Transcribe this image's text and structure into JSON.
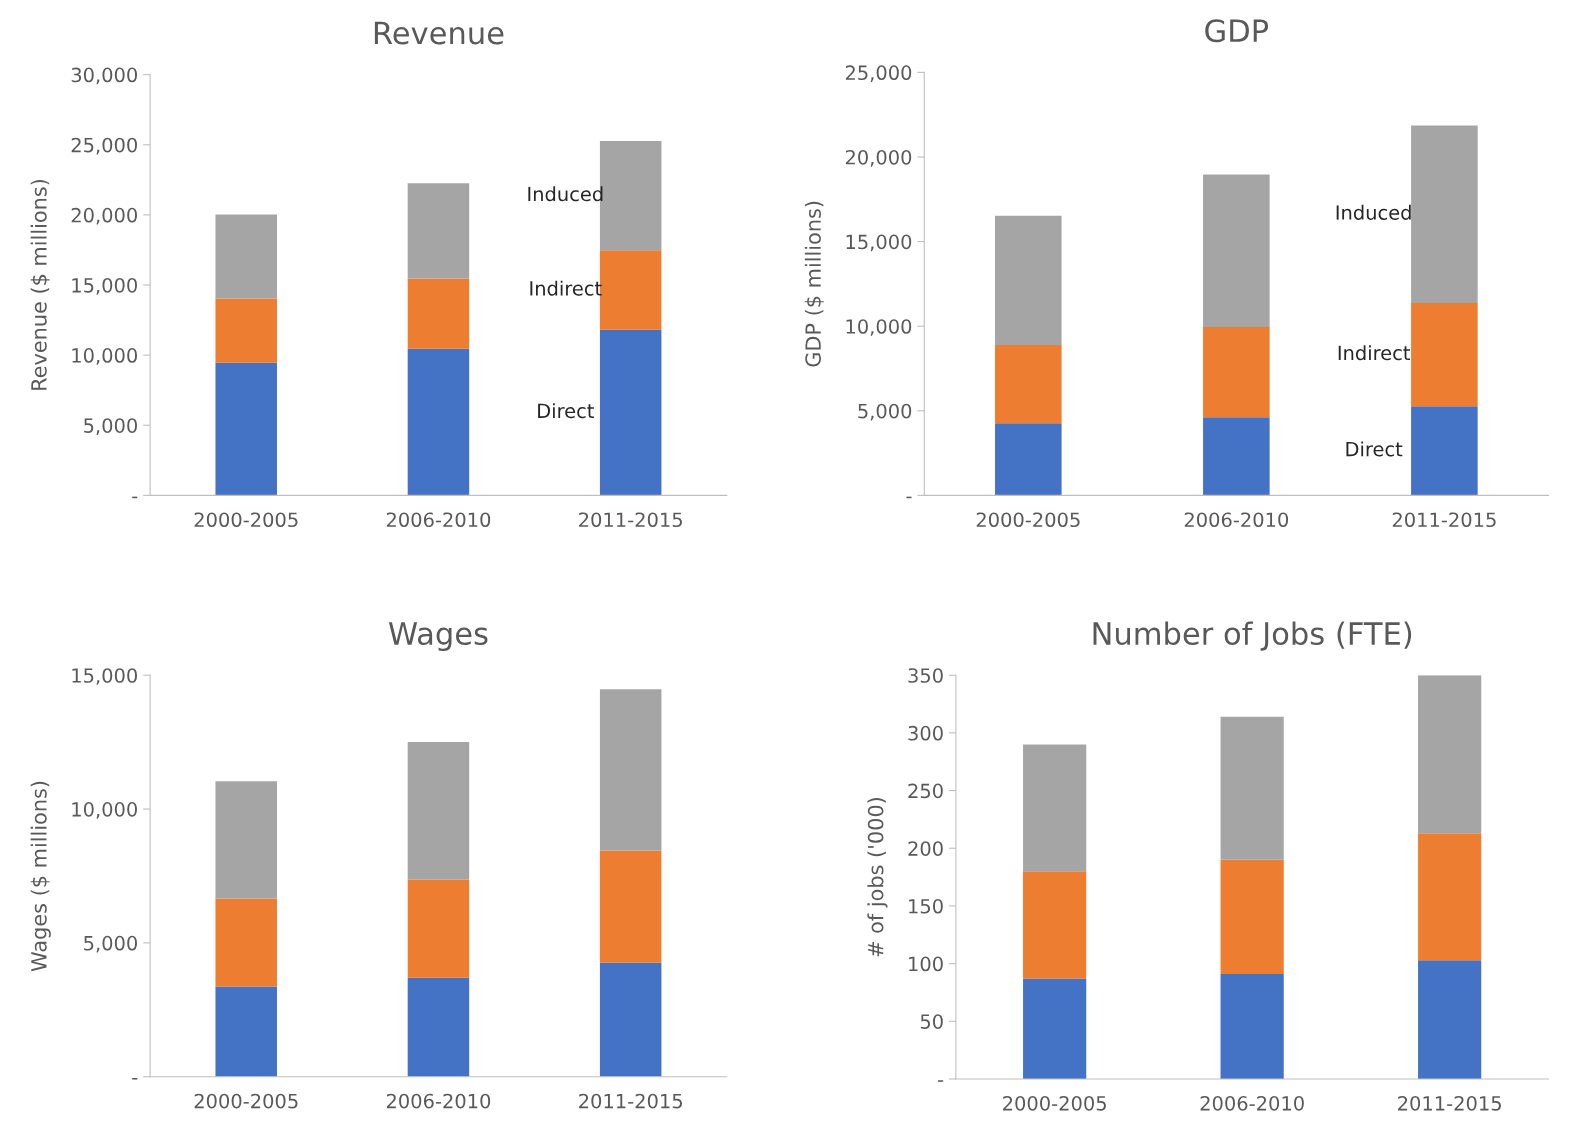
{
  "chart_data": [
    {
      "type": "bar",
      "title": "Revenue",
      "ylabel": "Revenue ($ millions)",
      "stacked": true,
      "categories": [
        "2000-2005",
        "2006-2010",
        "2011-2015"
      ],
      "ylim": [
        0,
        30000
      ],
      "yticks": [
        {
          "value": 0,
          "label": "-"
        },
        {
          "value": 5000,
          "label": "5,000"
        },
        {
          "value": 10000,
          "label": "10,000"
        },
        {
          "value": 15000,
          "label": "15,000"
        },
        {
          "value": 20000,
          "label": "20,000"
        },
        {
          "value": 25000,
          "label": "25,000"
        },
        {
          "value": 30000,
          "label": "30,000"
        }
      ],
      "grid": false,
      "legend": false,
      "series": [
        {
          "name": "Direct",
          "color": "#4472c4",
          "values": [
            9450,
            10450,
            11810
          ]
        },
        {
          "name": "Indirect",
          "color": "#ed7d31",
          "values": [
            4580,
            5010,
            5660
          ]
        },
        {
          "name": "Induced",
          "color": "#a5a5a5",
          "values": [
            6000,
            6800,
            7800
          ]
        }
      ]
    },
    {
      "type": "bar",
      "title": "GDP",
      "ylabel": "GDP ($ millions)",
      "stacked": true,
      "categories": [
        "2000-2005",
        "2006-2010",
        "2011-2015"
      ],
      "ylim": [
        0,
        25000
      ],
      "yticks": [
        {
          "value": 0,
          "label": "-"
        },
        {
          "value": 5000,
          "label": "5,000"
        },
        {
          "value": 10000,
          "label": "10,000"
        },
        {
          "value": 15000,
          "label": "15,000"
        },
        {
          "value": 20000,
          "label": "20,000"
        },
        {
          "value": 25000,
          "label": "25,000"
        }
      ],
      "grid": false,
      "legend": false,
      "series": [
        {
          "name": "Direct",
          "color": "#4472c4",
          "values": [
            4270,
            4620,
            5270
          ]
        },
        {
          "name": "Indirect",
          "color": "#ed7d31",
          "values": [
            4620,
            5330,
            6100
          ]
        },
        {
          "name": "Induced",
          "color": "#a5a5a5",
          "values": [
            7640,
            9010,
            10490
          ]
        }
      ]
    },
    {
      "type": "bar",
      "title": "Wages",
      "ylabel": "Wages ($ millions)",
      "stacked": true,
      "categories": [
        "2000-2005",
        "2006-2010",
        "2011-2015"
      ],
      "ylim": [
        0,
        15000
      ],
      "yticks": [
        {
          "value": 0,
          "label": "-"
        },
        {
          "value": 5000,
          "label": "5,000"
        },
        {
          "value": 10000,
          "label": "10,000"
        },
        {
          "value": 15000,
          "label": "15,000"
        }
      ],
      "grid": false,
      "legend": false,
      "series": [
        {
          "color": "#4472c4",
          "values": [
            3370,
            3700,
            4260
          ]
        },
        {
          "color": "#ed7d31",
          "values": [
            3290,
            3670,
            4190
          ]
        },
        {
          "color": "#a5a5a5",
          "values": [
            4380,
            5130,
            6030
          ]
        }
      ]
    },
    {
      "type": "bar",
      "title": "Number of Jobs (FTE)",
      "ylabel": "# of jobs ('000)",
      "stacked": true,
      "categories": [
        "2000-2005",
        "2006-2010",
        "2011-2015"
      ],
      "ylim": [
        0,
        350
      ],
      "yticks": [
        {
          "value": 0,
          "label": "-"
        },
        50,
        100,
        150,
        200,
        250,
        300,
        350
      ],
      "grid": false,
      "legend": false,
      "series": [
        {
          "color": "#4472c4",
          "values": [
            87,
            91,
            103
          ]
        },
        {
          "color": "#ed7d31",
          "values": [
            93,
            99,
            110
          ]
        },
        {
          "color": "#a5a5a5",
          "values": [
            110,
            124,
            137
          ]
        }
      ]
    }
  ]
}
